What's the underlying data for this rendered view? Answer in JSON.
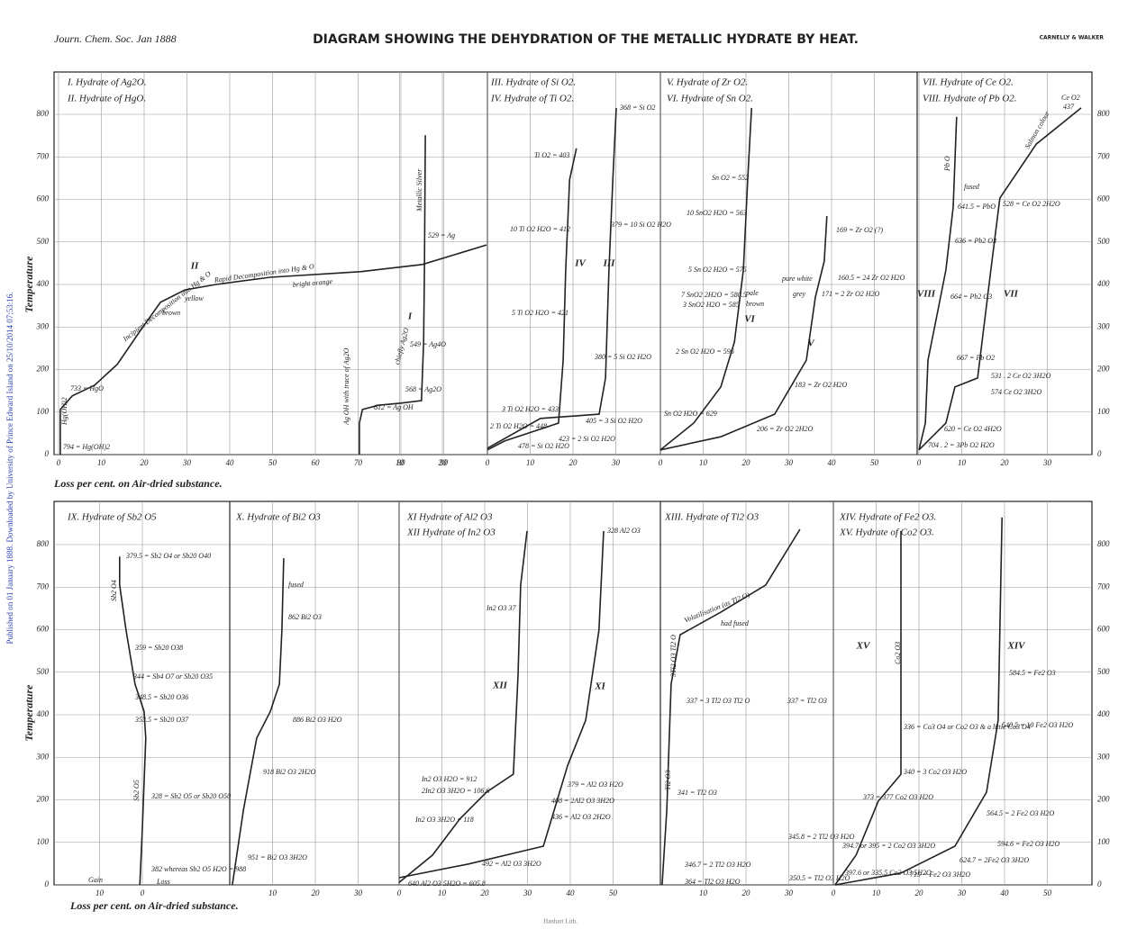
{
  "header": {
    "citation": "Journ. Chem. Soc. Jan 1888",
    "title": "DIAGRAM SHOWING THE DEHYDRATION OF THE METALLIC HYDRATE BY HEAT.",
    "authors": "CARNELLY & WALKER"
  },
  "side_note": "Published on 01 January 1888. Downloaded by University of Prince Edward Island on 25/10/2014 07:53:16.",
  "y_label": "Temperature",
  "x_label": "Loss per cent. on Air-dried substance.",
  "footer": "Hanhart Lith.",
  "temperature_ticks": [
    0,
    100,
    200,
    300,
    400,
    500,
    600,
    700,
    800
  ],
  "panels": [
    {
      "titles": [
        "I. Hydrate of Ag2O.",
        "II. Hydrate of HgO."
      ],
      "xticks": [
        0,
        10,
        20,
        30,
        40,
        50,
        60,
        70,
        80,
        90
      ],
      "xticks_silver": [
        10,
        20
      ],
      "curves": [
        {
          "name": "I",
          "loss": [
            70.3,
            70.3,
            71,
            74.7,
            80,
            84.8,
            85.3,
            85.5,
            85.7
          ],
          "temperature": [
            0,
            74,
            106,
            116,
            121,
            127,
            265,
            434,
            751
          ]
        },
        {
          "name": "II",
          "loss": [
            0.4,
            0.4,
            3.2,
            8.4,
            13.7,
            19,
            23.8,
            29.5,
            36.8,
            49.5,
            70.5,
            85,
            100
          ],
          "temperature": [
            0,
            106,
            138,
            163,
            212,
            290,
            358,
            387,
            400,
            417,
            430,
            447,
            493
          ]
        }
      ],
      "annotations": [
        "794 = Hg(OH)2",
        "733 = HgO",
        "Incipient Decomposition into Hg & O",
        "yellow",
        "brown",
        "Rapid Decomposition into Hg & O",
        "bright orange",
        "Metallic Silver",
        "529 = Ag",
        "549 = Ag4O",
        "chiefly Ag2O",
        "568 = Ag2O",
        "612 = Ag OH",
        "Ag OH with trace of Ag2O",
        "Hg(OH)2"
      ]
    },
    {
      "titles": [
        "III. Hydrate of Si O2.",
        "IV. Hydrate of Ti O2."
      ],
      "xticks": [
        0,
        10,
        20,
        30
      ],
      "curves": [
        {
          "name": "IV",
          "loss": [
            0,
            4,
            10.3,
            16.6,
            17.7,
            18.3,
            19.2,
            20.8
          ],
          "temperature": [
            11,
            32,
            53,
            74,
            222,
            434,
            646,
            720
          ]
        },
        {
          "name": "III",
          "loss": [
            0,
            12.4,
            26.1,
            27.6,
            28.4,
            29.3,
            30.1
          ],
          "temperature": [
            15,
            85,
            95,
            180,
            434,
            646,
            815
          ]
        }
      ],
      "annotations": [
        "368 = Si O2",
        "Ti O2 = 403",
        "10 Ti O2 H2O = 412",
        "379 = 10 Si O2 H2O",
        "5 Ti O2 H2O = 421",
        "380 = 5 Si O2 H2O",
        "3 Ti O2 H2O = 433",
        "2 Ti O2 H2O = 448",
        "405 = 3 Si O2 H2O",
        "423 = 2 Si O2 H2O",
        "478 = Si O2 H2O"
      ]
    },
    {
      "titles": [
        "V. Hydrate of Zr O2.",
        "VI. Hydrate of Sn O2."
      ],
      "xticks": [
        0,
        10,
        20,
        30,
        40,
        50
      ],
      "curves": [
        {
          "name": "VI",
          "loss": [
            0,
            7.8,
            14.1,
            17.3,
            19.4,
            20.4,
            21.3
          ],
          "temperature": [
            11,
            74,
            159,
            265,
            434,
            646,
            815
          ]
        },
        {
          "name": "V",
          "loss": [
            0,
            14.1,
            26.7,
            34.1,
            36.2,
            38.3,
            38.9
          ],
          "temperature": [
            11,
            42,
            95,
            222,
            370,
            455,
            561
          ]
        }
      ],
      "annotations": [
        "Sn O2 = 552",
        "10 SnO2 H2O = 563",
        "5 Sn O2 H2O = 575",
        "7 SnO2 2H2O = 580.5",
        "3 SnO2 H2O = 585",
        "pale",
        "brown",
        "2 Sn O2 H2O = 596",
        "Sn O2 H2O = 629",
        "169 = Zr O2 (?)",
        "pure white",
        "160.5 = 24 Zr O2 H2O",
        "grey",
        "171 = 2 Zr O2 H2O",
        "183 = Zr O2 H2O",
        "206 = Zr O2 2H2O"
      ]
    },
    {
      "titles": [
        "VII. Hydrate of Ce O2.",
        "VIII. Hydrate of Pb O2."
      ],
      "xticks": [
        0,
        10,
        20,
        30
      ],
      "curves": [
        {
          "name": "VIII",
          "loss": [
            0,
            1.5,
            2.1,
            4.2,
            6.3,
            8,
            8.8
          ],
          "temperature": [
            11,
            74,
            222,
            328,
            434,
            582,
            794
          ]
        },
        {
          "name": "VII",
          "loss": [
            0,
            6.3,
            8.4,
            13.7,
            16.8,
            18.9,
            27.4,
            37.9
          ],
          "temperature": [
            11,
            74,
            159,
            180,
            434,
            603,
            730,
            815
          ]
        }
      ],
      "annotations": [
        "Ce O2",
        "437",
        "Pb O",
        "fused",
        "641.5 = PbO",
        "528 = Ce O2 2H2O",
        "636 = Pb2 O3",
        "Salmon colour",
        "664 = Pb2 O3",
        "667 = Pb O2",
        "531 . 2 Ce O2 3H2O",
        "574 Ce O2 3H2O",
        "620 = Ce O2 4H2O",
        "704 . 2 = 3Pb O2 H2O"
      ]
    },
    {
      "titles": [
        "IX. Hydrate of Sb2 O5"
      ],
      "xticks": [
        {
          "value": -10,
          "label": "10"
        },
        0
      ],
      "curves": [
        {
          "loss": [
            -0.6,
            0,
            0.8,
            0.4,
            -1.7,
            -3.8,
            -5.3,
            -5.3
          ],
          "temperature": [
            0,
            133,
            345,
            408,
            472,
            599,
            705,
            772
          ]
        }
      ],
      "annotations": [
        "379.5 = Sb2 O4 or Sb20 O40",
        "Sb2 O4",
        "359 = Sb20 O38",
        "344 = Sb4 O7 or Sb20 O35",
        "348.5 = Sb20 O36",
        "353.5 = Sb20 O37",
        "328 = Sb2 O5 or Sb20 O50",
        "Sb2 O5",
        "382 whereas Sb2 O5 H2O = 988",
        "Loss",
        "Gain"
      ]
    },
    {
      "titles": [
        "X. Hydrate of Bi2 O3"
      ],
      "xticks": [
        10,
        20,
        30
      ],
      "curves": [
        {
          "loss": [
            0.6,
            3.2,
            6.3,
            9.5,
            11.6,
            12.2,
            12.6
          ],
          "temperature": [
            0,
            176,
            345,
            408,
            472,
            599,
            768
          ]
        }
      ],
      "annotations": [
        "fused",
        "862 Bi2 O3",
        "886 Bi2 O3 H2O",
        "918 Bi2 O3 2H2O",
        "951 = Bi2 O3 3H2O"
      ]
    },
    {
      "titles": [
        "XI Hydrate of Al2 O3",
        "XII Hydrate of In2 O3"
      ],
      "xticks": [
        0,
        10,
        20,
        30,
        40,
        50
      ],
      "curves": [
        {
          "name": "XII",
          "loss": [
            0,
            7.8,
            14.1,
            20.4,
            26.7,
            27.8,
            28.4,
            29.9
          ],
          "temperature": [
            6,
            70,
            154,
            218,
            260,
            493,
            705,
            832
          ]
        },
        {
          "name": "XI",
          "loss": [
            0,
            16.2,
            33.7,
            39.4,
            43.6,
            46.7,
            47.8
          ],
          "temperature": [
            17,
            49,
            91,
            281,
            387,
            599,
            832
          ]
        }
      ],
      "annotations": [
        "328 Al2 O3",
        "In2 O3 37",
        "In2 O3 H2O = 912",
        "379 = Al2 O3 H2O",
        "2In2 O3 3H2O = 106.6",
        "408 = 2Al2 O3 3H2O",
        "436 = Al2 O3 2H2O",
        "In2 O3 3H2O = 118",
        "492 = Al2 O3 3H2O",
        "640 Al2 O3 5H2O = 605.8"
      ]
    },
    {
      "titles": [
        "XIII. Hydrate of Tl2 O3"
      ],
      "xticks": [
        10,
        20,
        30
      ],
      "curves": [
        {
          "loss": [
            0.4,
            1.5,
            2.5,
            4.6,
            14.1,
            24.6,
            32.6
          ],
          "temperature": [
            0,
            176,
            472,
            588,
            641,
            705,
            836
          ]
        }
      ],
      "annotations": [
        "Volatilisation (as Tl2 O)",
        "had fused",
        "3Tl2 O3 Tl2 O",
        "337 = 3 Tl2 O3 Tl2 O",
        "337 = Tl2 O3",
        "Tl2 O3",
        "341 = Tl2 O3",
        "345.8 = 2 Tl2 O3 H2O",
        "346.7 = 2 Tl2 O3 H2O",
        "364 = Tl2 O3 H2O",
        "350.5 = Tl2 O3 H2O"
      ]
    },
    {
      "titles": [
        "XIV. Hydrate of Fe2 O3.",
        "XV. Hydrate of Co2 O3."
      ],
      "xticks": [
        0,
        10,
        20,
        30,
        40,
        50
      ],
      "curves": [
        {
          "name": "XV",
          "loss": [
            0.4,
            5.3,
            10.5,
            15.8,
            15.8,
            15.8
          ],
          "temperature": [
            0,
            70,
            197,
            260,
            599,
            832
          ]
        },
        {
          "name": "XIV",
          "loss": [
            0.4,
            15.8,
            28.4,
            35.8,
            38.5,
            38.9,
            39.4
          ],
          "temperature": [
            0,
            28,
            91,
            218,
            387,
            599,
            864
          ]
        }
      ],
      "annotations": [
        "Co2 O3",
        "584.5 = Fe2 O3",
        "540.5 = 10 Fe2 O3 H2O",
        "336 = Co3 O4 or Co2 O3 & a little Co3 O4",
        "340 = 3 Co2 O3 H2O",
        "373 = 377 Co2 O3 H2O",
        "564.5 = 2 Fe2 O3 H2O",
        "394.7 or 395 = 2 Co2 O3 3H2O",
        "594.6 = Fe2 O3 H2O",
        "397.6 or 335.5 Co2 O3 5H2O",
        "624.7 = 2Fe2 O3 3H2O",
        "715 = Fe2 O3 3H2O"
      ]
    }
  ]
}
